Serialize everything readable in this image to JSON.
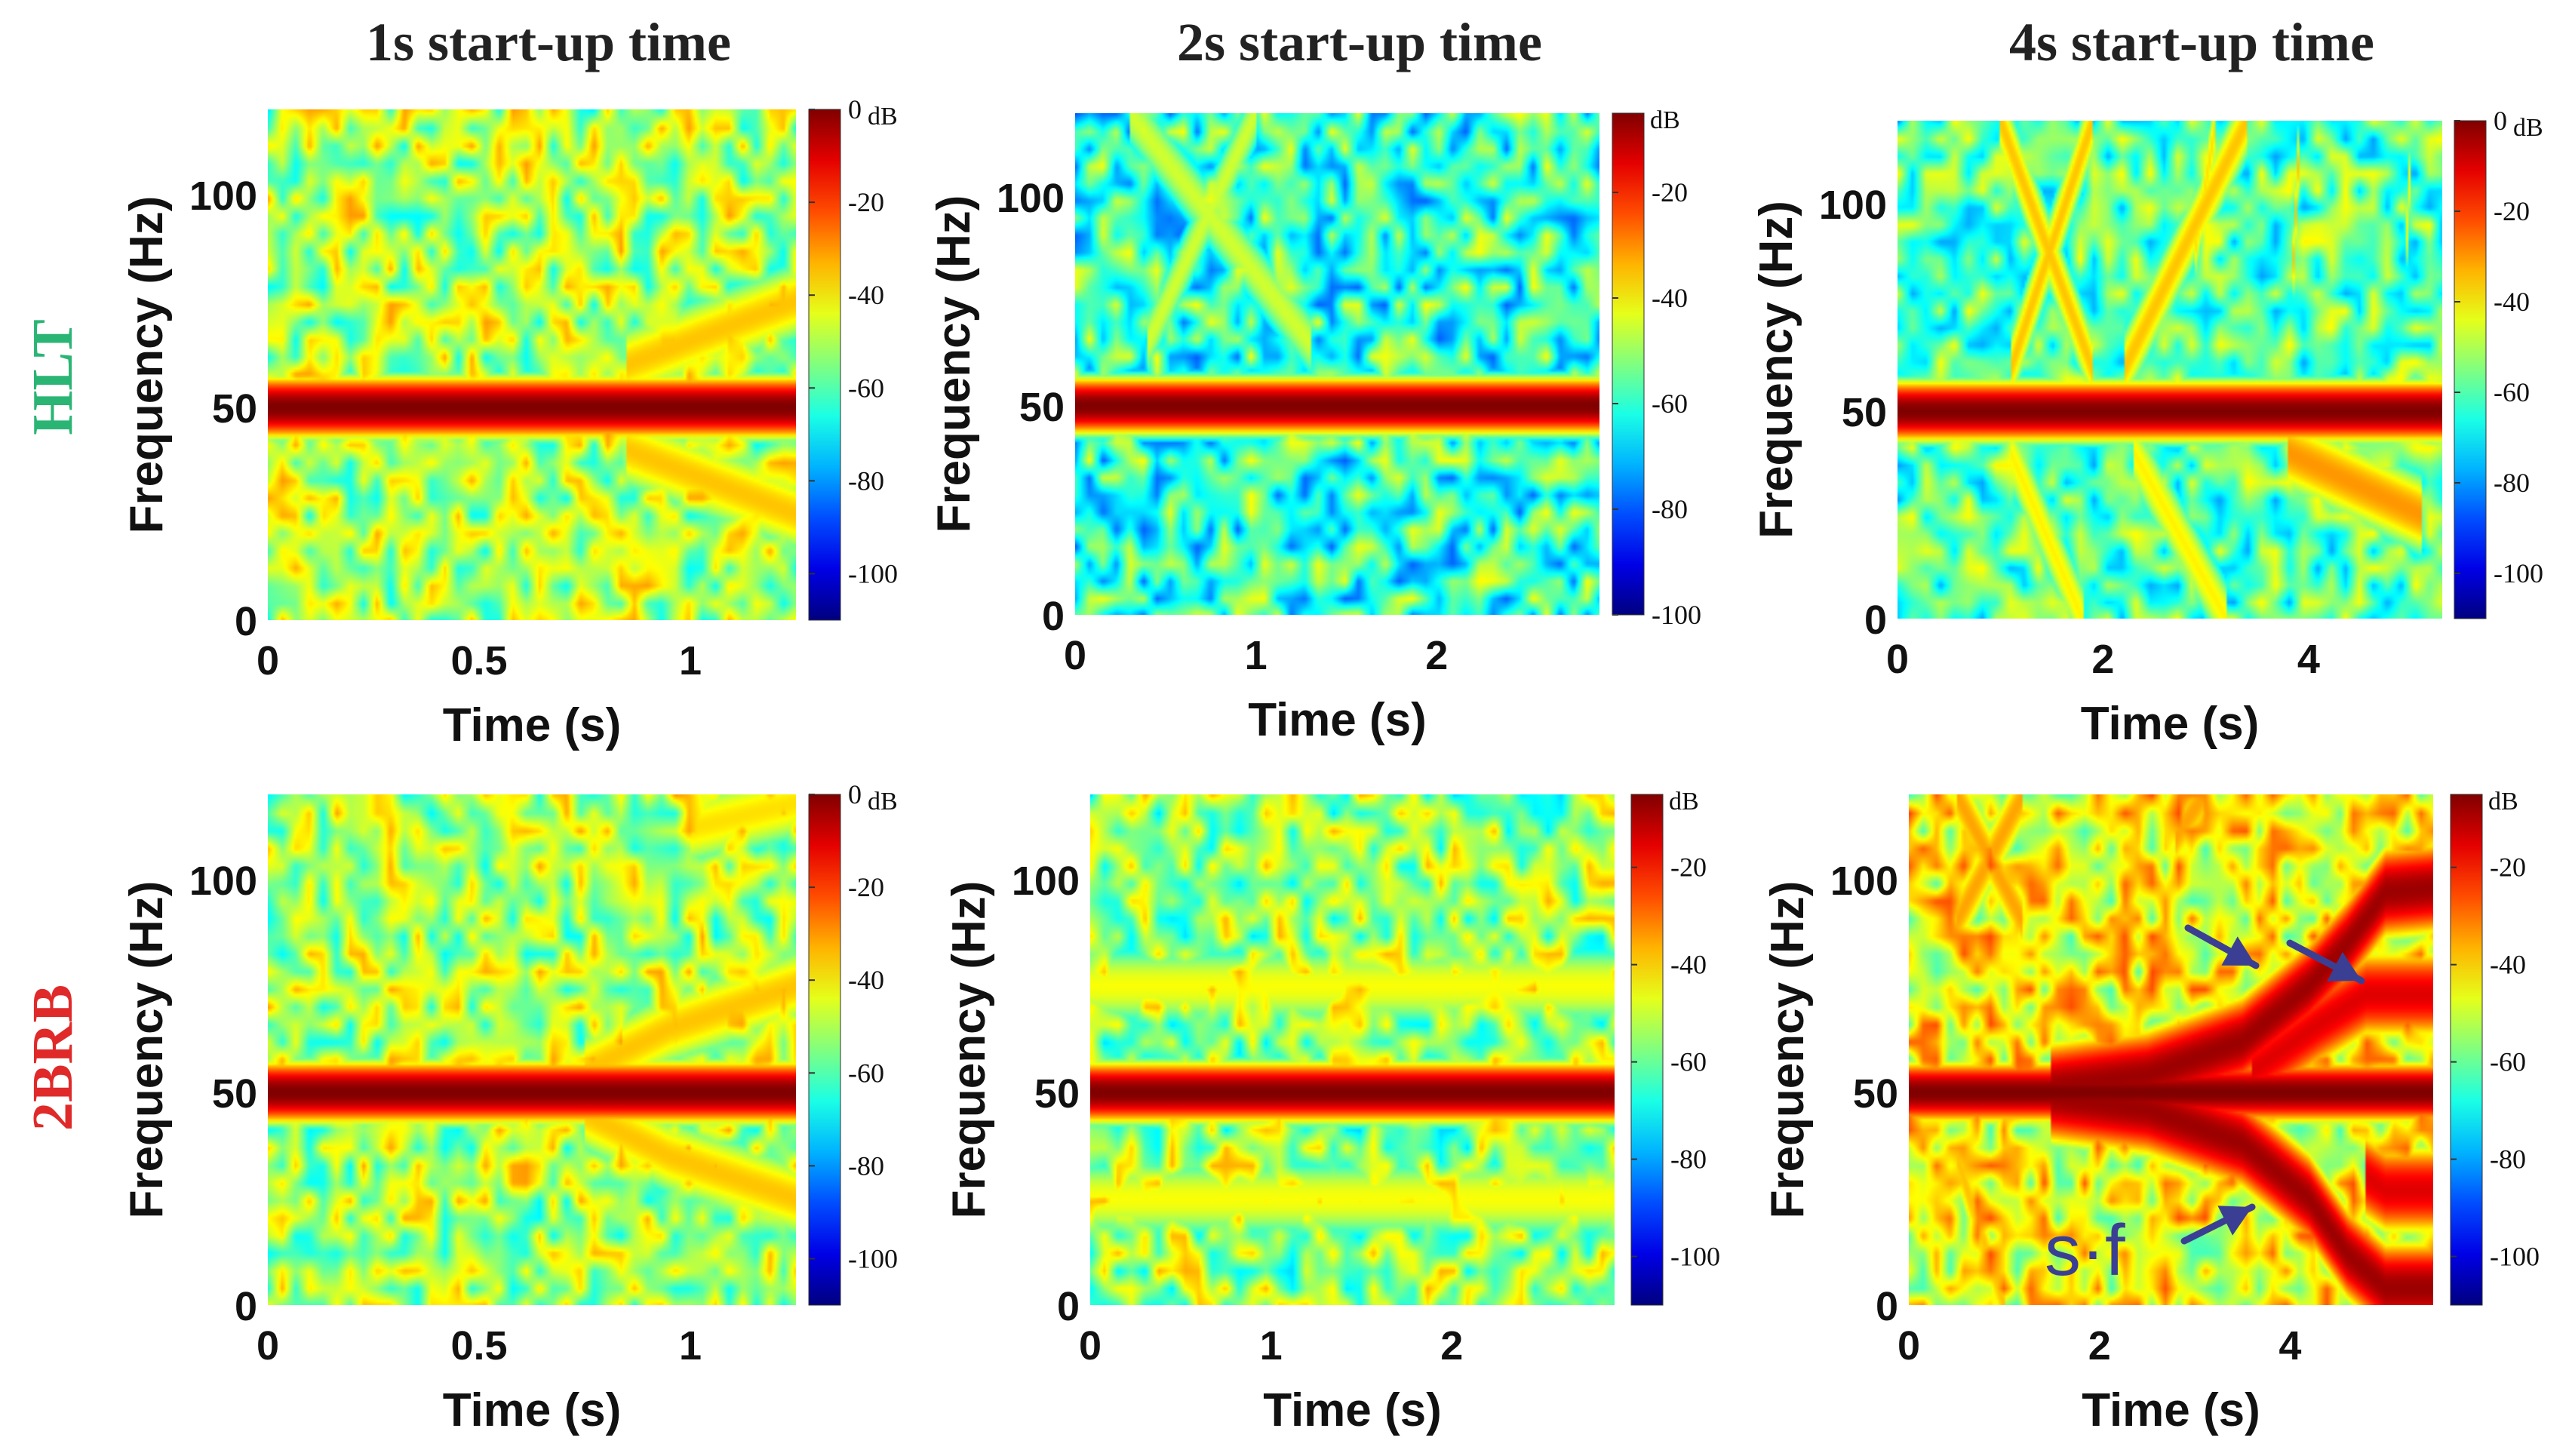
{
  "column_titles": [
    "1s start-up time",
    "2s start-up time",
    "4s start-up time"
  ],
  "row_labels": [
    {
      "text": "HLT",
      "color": "#2ab574"
    },
    {
      "text": "2BRB",
      "color": "#e02a2a"
    }
  ],
  "annotation": {
    "text": "s·f",
    "arrow_color": "#3b3f93"
  },
  "chart_data": [
    {
      "id": "hlt-1s",
      "type": "heatmap",
      "xlabel": "Time (s)",
      "ylabel": "Frequency (Hz)",
      "xlim": [
        0,
        1.25
      ],
      "ylim": [
        0,
        120
      ],
      "xticks": [
        0,
        0.5,
        1
      ],
      "xtick_labels": [
        "0",
        "0.5",
        "1"
      ],
      "yticks": [
        0,
        50,
        100
      ],
      "ytick_labels": [
        "0",
        "50",
        "100"
      ],
      "colorbar": {
        "unit": "dB",
        "range": [
          -110,
          0
        ],
        "ticks": [
          0,
          -20,
          -40,
          -60,
          -80,
          -100
        ],
        "tick_labels": [
          "0",
          "-20",
          "-40",
          "-60",
          "-80",
          "-100"
        ]
      },
      "base_level_db": -50,
      "fundamental_hz": 50,
      "fundamental_level_db": 0,
      "components": [
        {
          "kind": "curve",
          "points": [
            [
              0.85,
              60
            ],
            [
              1.25,
              75
            ]
          ],
          "level_db": -35
        },
        {
          "kind": "curve",
          "points": [
            [
              0.85,
              40
            ],
            [
              1.25,
              25
            ]
          ],
          "level_db": -35
        }
      ]
    },
    {
      "id": "hlt-2s",
      "type": "heatmap",
      "xlabel": "Time (s)",
      "ylabel": "Frequency (Hz)",
      "xlim": [
        0,
        2.9
      ],
      "ylim": [
        0,
        120
      ],
      "xticks": [
        0,
        1,
        2
      ],
      "xtick_labels": [
        "0",
        "1",
        "2"
      ],
      "yticks": [
        0,
        50,
        100
      ],
      "ytick_labels": [
        "0",
        "50",
        "100"
      ],
      "colorbar": {
        "unit": "dB",
        "range": [
          -100,
          -5
        ],
        "ticks": [
          -20,
          -40,
          -60,
          -80,
          -100
        ],
        "tick_labels": [
          "-20",
          "-40",
          "-60",
          "-80",
          "-100"
        ]
      },
      "base_level_db": -60,
      "fundamental_hz": 50,
      "fundamental_level_db": -5,
      "components": [
        {
          "kind": "curve",
          "points": [
            [
              0.3,
              120
            ],
            [
              1.3,
              65
            ]
          ],
          "level_db": -45
        },
        {
          "kind": "curve",
          "points": [
            [
              0.4,
              65
            ],
            [
              1.0,
              120
            ]
          ],
          "level_db": -45
        }
      ]
    },
    {
      "id": "hlt-4s",
      "type": "heatmap",
      "xlabel": "Time (s)",
      "ylabel": "Frequency (Hz)",
      "xlim": [
        0,
        5.3
      ],
      "ylim": [
        0,
        120
      ],
      "xticks": [
        0,
        2,
        4
      ],
      "xtick_labels": [
        "0",
        "2",
        "4"
      ],
      "yticks": [
        0,
        50,
        100
      ],
      "ytick_labels": [
        "0",
        "50",
        "100"
      ],
      "colorbar": {
        "unit": "dB",
        "range": [
          -110,
          0
        ],
        "ticks": [
          0,
          -20,
          -40,
          -60,
          -80,
          -100
        ],
        "tick_labels": [
          "0",
          "-20",
          "-40",
          "-60",
          "-80",
          "-100"
        ]
      },
      "base_level_db": -60,
      "fundamental_hz": 50,
      "fundamental_level_db": 0,
      "components": [
        {
          "kind": "curve",
          "points": [
            [
              1.0,
              120
            ],
            [
              1.9,
              60
            ]
          ],
          "level_db": -35
        },
        {
          "kind": "curve",
          "points": [
            [
              1.1,
              60
            ],
            [
              1.9,
              120
            ]
          ],
          "level_db": -35
        },
        {
          "kind": "curve",
          "points": [
            [
              2.2,
              60
            ],
            [
              3.4,
              120
            ]
          ],
          "level_db": -35
        },
        {
          "kind": "curve",
          "points": [
            [
              2.9,
              90
            ],
            [
              3.1,
              120
            ]
          ],
          "level_db": -38
        },
        {
          "kind": "curve",
          "points": [
            [
              1.1,
              40
            ],
            [
              1.8,
              0
            ]
          ],
          "level_db": -40
        },
        {
          "kind": "curve",
          "points": [
            [
              2.3,
              40
            ],
            [
              3.2,
              0
            ]
          ],
          "level_db": -40
        },
        {
          "kind": "curve",
          "points": [
            [
              3.8,
              40
            ],
            [
              5.1,
              25
            ]
          ],
          "level_db": -30
        },
        {
          "kind": "curve",
          "points": [
            [
              3.85,
              85
            ],
            [
              3.9,
              110
            ]
          ],
          "level_db": -35
        },
        {
          "kind": "curve",
          "points": [
            [
              4.95,
              90
            ],
            [
              5.0,
              115
            ]
          ],
          "level_db": -40
        }
      ]
    },
    {
      "id": "2brb-1s",
      "type": "heatmap",
      "xlabel": "Time (s)",
      "ylabel": "Frequency (Hz)",
      "xlim": [
        0,
        1.25
      ],
      "ylim": [
        0,
        120
      ],
      "xticks": [
        0,
        0.5,
        1
      ],
      "xtick_labels": [
        "0",
        "0.5",
        "1"
      ],
      "yticks": [
        0,
        50,
        100
      ],
      "ytick_labels": [
        "0",
        "50",
        "100"
      ],
      "colorbar": {
        "unit": "dB",
        "range": [
          -110,
          0
        ],
        "ticks": [
          0,
          -20,
          -40,
          -60,
          -80,
          -100
        ],
        "tick_labels": [
          "0",
          "-20",
          "-40",
          "-60",
          "-80",
          "-100"
        ]
      },
      "base_level_db": -50,
      "fundamental_hz": 50,
      "fundamental_level_db": 0,
      "components": [
        {
          "kind": "curve",
          "points": [
            [
              0.75,
              55
            ],
            [
              0.95,
              65
            ],
            [
              1.25,
              75
            ]
          ],
          "level_db": -35
        },
        {
          "kind": "curve",
          "points": [
            [
              0.75,
              45
            ],
            [
              0.95,
              35
            ],
            [
              1.25,
              25
            ]
          ],
          "level_db": -35
        },
        {
          "kind": "curve",
          "points": [
            [
              1.0,
              112
            ],
            [
              1.25,
              118
            ]
          ],
          "level_db": -38
        }
      ]
    },
    {
      "id": "2brb-2s",
      "type": "heatmap",
      "xlabel": "Time (s)",
      "ylabel": "Frequency (Hz)",
      "xlim": [
        0,
        2.9
      ],
      "ylim": [
        0,
        120
      ],
      "xticks": [
        0,
        1,
        2
      ],
      "xtick_labels": [
        "0",
        "1",
        "2"
      ],
      "yticks": [
        0,
        50,
        100
      ],
      "ytick_labels": [
        "0",
        "50",
        "100"
      ],
      "colorbar": {
        "unit": "dB",
        "range": [
          -110,
          -5
        ],
        "ticks": [
          -20,
          -40,
          -60,
          -80,
          -100
        ],
        "tick_labels": [
          "-20",
          "-40",
          "-60",
          "-80",
          "-100"
        ]
      },
      "base_level_db": -55,
      "fundamental_hz": 50,
      "fundamental_level_db": -5,
      "components": [
        {
          "kind": "curve",
          "points": [
            [
              0,
              75
            ],
            [
              2.9,
              75
            ]
          ],
          "level_db": -45
        },
        {
          "kind": "curve",
          "points": [
            [
              0,
              25
            ],
            [
              2.9,
              25
            ]
          ],
          "level_db": -45
        }
      ]
    },
    {
      "id": "2brb-4s",
      "type": "heatmap",
      "xlabel": "Time (s)",
      "ylabel": "Frequency (Hz)",
      "xlim": [
        0,
        5.5
      ],
      "ylim": [
        0,
        120
      ],
      "xticks": [
        0,
        2,
        4
      ],
      "xtick_labels": [
        "0",
        "2",
        "4"
      ],
      "yticks": [
        0,
        50,
        100
      ],
      "ytick_labels": [
        "0",
        "50",
        "100"
      ],
      "colorbar": {
        "unit": "dB",
        "range": [
          -110,
          -5
        ],
        "ticks": [
          -20,
          -40,
          -60,
          -80,
          -100
        ],
        "tick_labels": [
          "-20",
          "-40",
          "-60",
          "-80",
          "-100"
        ]
      },
      "base_level_db": -45,
      "fundamental_hz": 50,
      "fundamental_level_db": -5,
      "components": [
        {
          "kind": "curve",
          "points": [
            [
              1.5,
              51
            ],
            [
              2.5,
              54
            ],
            [
              3.5,
              62
            ],
            [
              4.2,
              75
            ],
            [
              4.6,
              85
            ],
            [
              5.0,
              97
            ],
            [
              5.5,
              98
            ]
          ],
          "level_db": -8
        },
        {
          "kind": "curve",
          "points": [
            [
              1.5,
              49
            ],
            [
              2.5,
              46
            ],
            [
              3.5,
              38
            ],
            [
              4.2,
              25
            ],
            [
              4.6,
              12
            ],
            [
              5.0,
              4
            ],
            [
              5.5,
              4
            ]
          ],
          "level_db": -8
        },
        {
          "kind": "curve",
          "points": [
            [
              3.6,
              55
            ],
            [
              4.3,
              66
            ],
            [
              4.8,
              73
            ],
            [
              5.5,
              73
            ]
          ],
          "level_db": -15
        },
        {
          "kind": "curve",
          "points": [
            [
              4.8,
              30
            ],
            [
              5.0,
              27
            ],
            [
              5.5,
              27
            ]
          ],
          "level_db": -15
        },
        {
          "kind": "curve",
          "points": [
            [
              0.5,
              120
            ],
            [
              1.2,
              90
            ]
          ],
          "level_db": -35
        },
        {
          "kind": "curve",
          "points": [
            [
              0.5,
              90
            ],
            [
              1.2,
              120
            ]
          ],
          "level_db": -35
        },
        {
          "kind": "curve",
          "points": [
            [
              2.8,
              110
            ],
            [
              3.1,
              120
            ]
          ],
          "level_db": -35
        },
        {
          "kind": "curve",
          "points": [
            [
              0.5,
              35
            ],
            [
              1.0,
              0
            ]
          ],
          "level_db": -38
        }
      ]
    }
  ]
}
